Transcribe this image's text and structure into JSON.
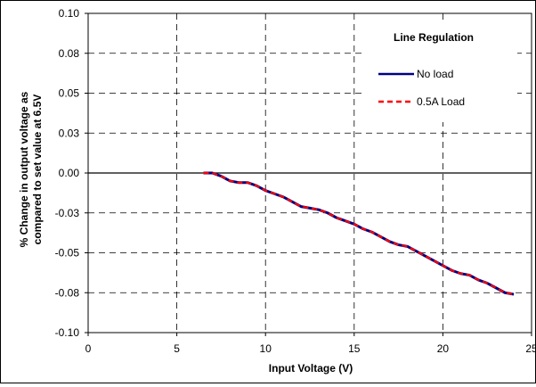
{
  "chart_data": {
    "type": "line",
    "title": "Line Regulation",
    "xlabel": "Input Voltage (V)",
    "ylabel_lines": [
      "% Change in output voltage as",
      "compared to set value at 6.5V"
    ],
    "xlim": [
      0,
      25
    ],
    "ylim": [
      -0.1,
      0.1
    ],
    "x_ticks": [
      0,
      5,
      10,
      15,
      20,
      25
    ],
    "y_ticks": [
      0.1,
      0.075,
      0.05,
      0.025,
      0,
      -0.025,
      -0.05,
      -0.075,
      -0.1
    ],
    "x_tick_labels": [
      "0",
      "5",
      "10",
      "15",
      "20",
      "25"
    ],
    "y_tick_labels": [
      "0.10",
      "0.08",
      "0.05",
      "0.03",
      "0.00",
      "-0.03",
      "-0.05",
      "-0.08",
      "-0.10"
    ],
    "grid": true,
    "legend_position": "top-right",
    "series": [
      {
        "name": "No load",
        "color": "#000080",
        "style": "solid",
        "x": [
          6.5,
          7.0,
          7.5,
          8.0,
          8.5,
          9.0,
          9.5,
          10.0,
          10.5,
          11.0,
          11.5,
          12.0,
          12.5,
          13.0,
          13.5,
          14.0,
          14.5,
          15.0,
          15.5,
          16.0,
          16.5,
          17.0,
          17.5,
          18.0,
          18.5,
          19.0,
          19.5,
          20.0,
          20.5,
          21.0,
          21.5,
          22.0,
          22.5,
          23.0,
          23.5,
          24.0
        ],
        "values": [
          0,
          0,
          -0.002,
          -0.005,
          -0.006,
          -0.006,
          -0.008,
          -0.011,
          -0.013,
          -0.015,
          -0.018,
          -0.021,
          -0.022,
          -0.023,
          -0.025,
          -0.028,
          -0.03,
          -0.032,
          -0.035,
          -0.037,
          -0.04,
          -0.043,
          -0.045,
          -0.046,
          -0.049,
          -0.052,
          -0.055,
          -0.058,
          -0.061,
          -0.063,
          -0.064,
          -0.067,
          -0.069,
          -0.072,
          -0.075,
          -0.076
        ]
      },
      {
        "name": "0.5A Load",
        "color": "#ff0000",
        "style": "dashed",
        "x": [
          6.5,
          7.0,
          7.5,
          8.0,
          8.5,
          9.0,
          9.5,
          10.0,
          10.5,
          11.0,
          11.5,
          12.0,
          12.5,
          13.0,
          13.5,
          14.0,
          14.5,
          15.0,
          15.5,
          16.0,
          16.5,
          17.0,
          17.5,
          18.0,
          18.5,
          19.0,
          19.5,
          20.0,
          20.5,
          21.0,
          21.5,
          22.0,
          22.5,
          23.0,
          23.5,
          24.0
        ],
        "values": [
          0,
          0,
          -0.002,
          -0.005,
          -0.006,
          -0.006,
          -0.008,
          -0.011,
          -0.013,
          -0.015,
          -0.018,
          -0.021,
          -0.022,
          -0.023,
          -0.025,
          -0.028,
          -0.03,
          -0.032,
          -0.035,
          -0.037,
          -0.04,
          -0.043,
          -0.045,
          -0.046,
          -0.049,
          -0.052,
          -0.055,
          -0.058,
          -0.061,
          -0.063,
          -0.064,
          -0.067,
          -0.069,
          -0.072,
          -0.075,
          -0.076
        ]
      }
    ]
  }
}
